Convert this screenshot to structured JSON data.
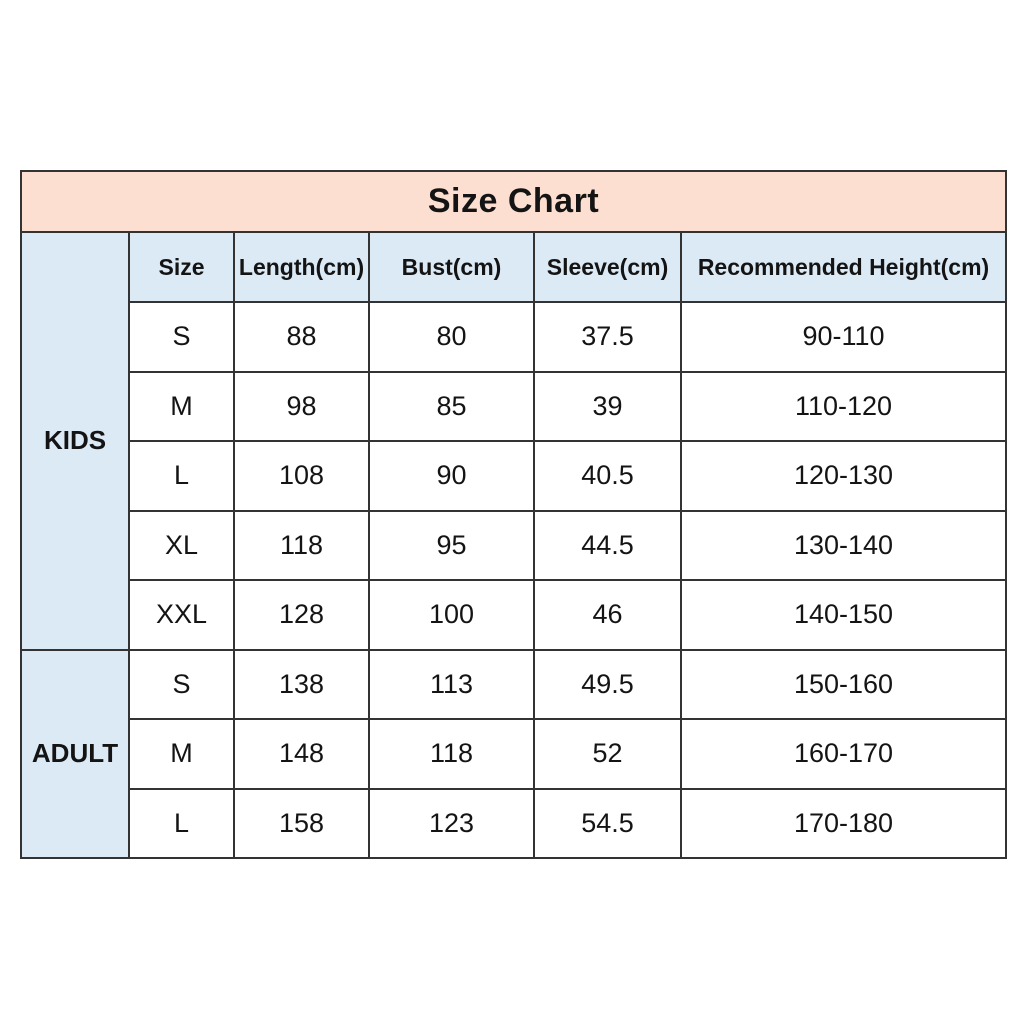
{
  "title": "Size Chart",
  "colors": {
    "title_background": "#fcdfd0",
    "header_background": "#dceaf6",
    "group_background": "#dceaf6",
    "cell_background": "#ffffff",
    "border": "#333333",
    "text": "#141414"
  },
  "table": {
    "headers": [
      "Size",
      "Length(cm)",
      "Bust(cm)",
      "Sleeve(cm)",
      "Recommended Height(cm)"
    ],
    "groups": [
      {
        "label": "KIDS",
        "rows": [
          [
            "S",
            "88",
            "80",
            "37.5",
            "90-110"
          ],
          [
            "M",
            "98",
            "85",
            "39",
            "110-120"
          ],
          [
            "L",
            "108",
            "90",
            "40.5",
            "120-130"
          ],
          [
            "XL",
            "118",
            "95",
            "44.5",
            "130-140"
          ],
          [
            "XXL",
            "128",
            "100",
            "46",
            "140-150"
          ]
        ]
      },
      {
        "label": "ADULT",
        "rows": [
          [
            "S",
            "138",
            "113",
            "49.5",
            "150-160"
          ],
          [
            "M",
            "148",
            "118",
            "52",
            "160-170"
          ],
          [
            "L",
            "158",
            "123",
            "54.5",
            "170-180"
          ]
        ]
      }
    ]
  },
  "chart_data": {
    "type": "table",
    "title": "Size Chart",
    "columns": [
      "Group",
      "Size",
      "Length(cm)",
      "Bust(cm)",
      "Sleeve(cm)",
      "Recommended Height(cm)"
    ],
    "rows": [
      [
        "KIDS",
        "S",
        88,
        80,
        37.5,
        "90-110"
      ],
      [
        "KIDS",
        "M",
        98,
        85,
        39,
        "110-120"
      ],
      [
        "KIDS",
        "L",
        108,
        90,
        40.5,
        "120-130"
      ],
      [
        "KIDS",
        "XL",
        118,
        95,
        44.5,
        "130-140"
      ],
      [
        "KIDS",
        "XXL",
        128,
        100,
        46,
        "140-150"
      ],
      [
        "ADULT",
        "S",
        138,
        113,
        49.5,
        "150-160"
      ],
      [
        "ADULT",
        "M",
        148,
        118,
        52,
        "160-170"
      ],
      [
        "ADULT",
        "L",
        158,
        123,
        54.5,
        "170-180"
      ]
    ],
    "layout_hints": {
      "group_column_merged": true,
      "group_cell_spans_header_row": true,
      "grid": true
    }
  }
}
